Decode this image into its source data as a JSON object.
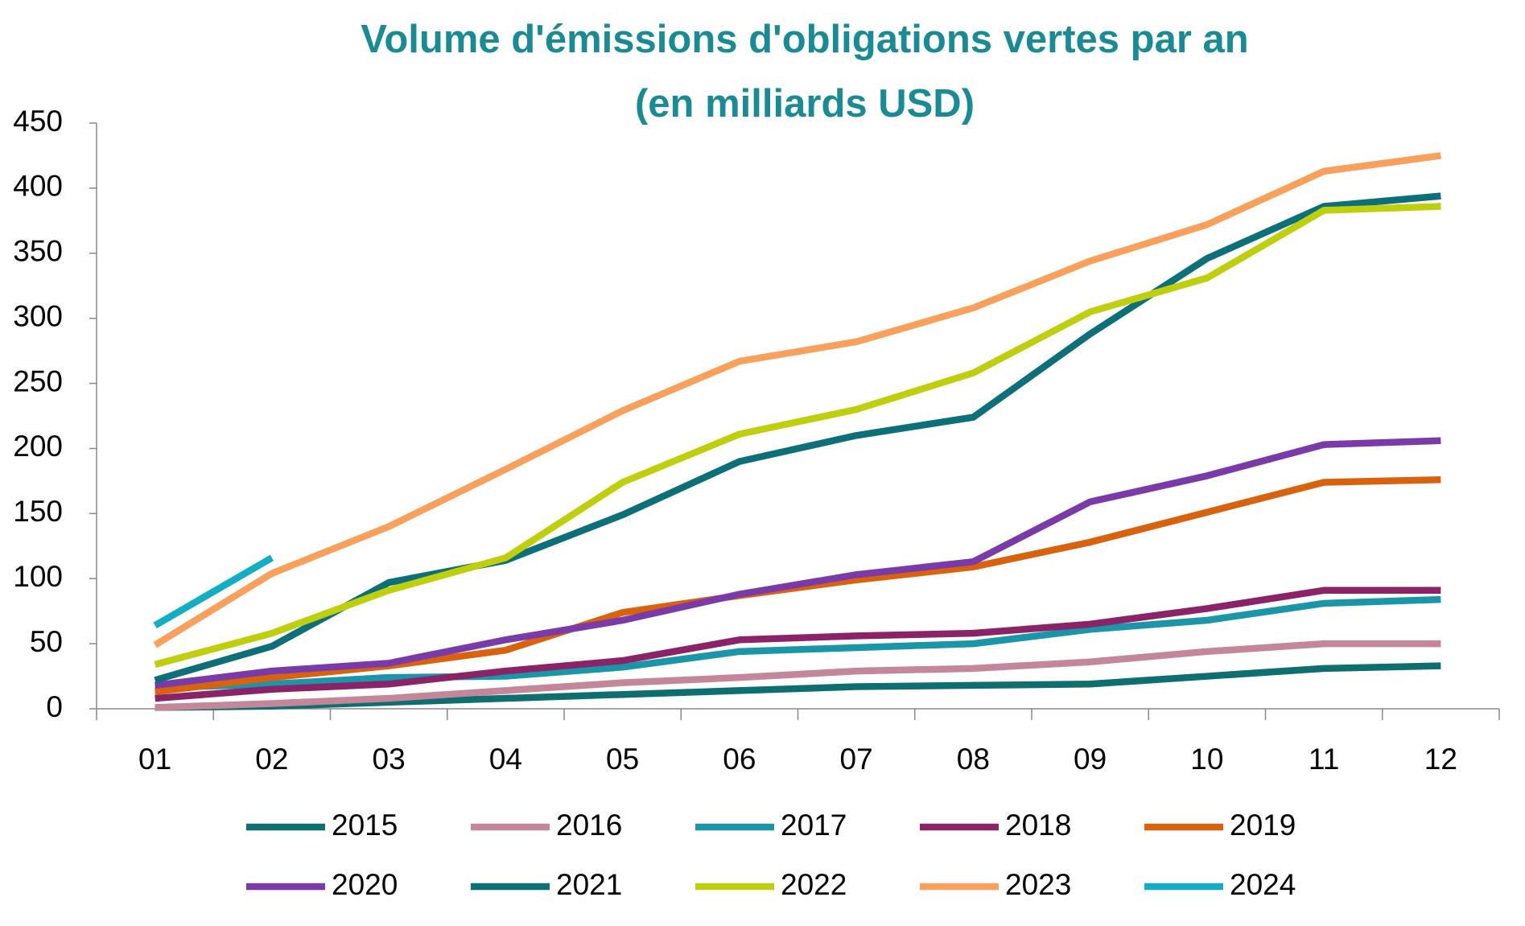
{
  "chart_data": {
    "type": "line",
    "title": [
      "Volume d'émissions d'obligations vertes par an",
      "(en milliards USD)"
    ],
    "categories": [
      "01",
      "02",
      "03",
      "04",
      "05",
      "06",
      "07",
      "08",
      "09",
      "10",
      "11",
      "12"
    ],
    "ylim": [
      0,
      450
    ],
    "yticks": [
      0,
      50,
      100,
      150,
      200,
      250,
      300,
      350,
      400,
      450
    ],
    "grid": false,
    "legend": "bottom",
    "series": [
      {
        "name": "2015",
        "color": "#0f6e70",
        "values": [
          1,
          2,
          5,
          8,
          11,
          14,
          17,
          18,
          19,
          25,
          31,
          33
        ]
      },
      {
        "name": "2016",
        "color": "#c4879a",
        "values": [
          1,
          4,
          8,
          14,
          20,
          24,
          29,
          31,
          36,
          44,
          50,
          50
        ]
      },
      {
        "name": "2017",
        "color": "#1a96a8",
        "values": [
          16,
          19,
          24,
          25,
          32,
          44,
          47,
          50,
          61,
          68,
          81,
          84
        ]
      },
      {
        "name": "2018",
        "color": "#8b2368",
        "values": [
          8,
          15,
          19,
          29,
          37,
          53,
          56,
          58,
          65,
          77,
          91,
          91
        ]
      },
      {
        "name": "2019",
        "color": "#d9620f",
        "values": [
          13,
          24,
          33,
          45,
          74,
          87,
          99,
          109,
          128,
          151,
          174,
          176
        ]
      },
      {
        "name": "2020",
        "color": "#7a3aa8",
        "values": [
          18,
          29,
          35,
          53,
          68,
          88,
          103,
          113,
          159,
          179,
          203,
          206
        ]
      },
      {
        "name": "2021",
        "color": "#0d7078",
        "values": [
          22,
          48,
          97,
          114,
          149,
          190,
          210,
          224,
          288,
          346,
          386,
          394
        ]
      },
      {
        "name": "2022",
        "color": "#bfcf0e",
        "values": [
          34,
          58,
          91,
          116,
          174,
          211,
          230,
          258,
          305,
          331,
          383,
          386
        ]
      },
      {
        "name": "2023",
        "color": "#f9a15c",
        "values": [
          49,
          104,
          140,
          184,
          229,
          267,
          282,
          308,
          344,
          372,
          413,
          425
        ]
      },
      {
        "name": "2024",
        "color": "#14aec4",
        "values": [
          64,
          116,
          null,
          null,
          null,
          null,
          null,
          null,
          null,
          null,
          null,
          null
        ]
      }
    ]
  }
}
